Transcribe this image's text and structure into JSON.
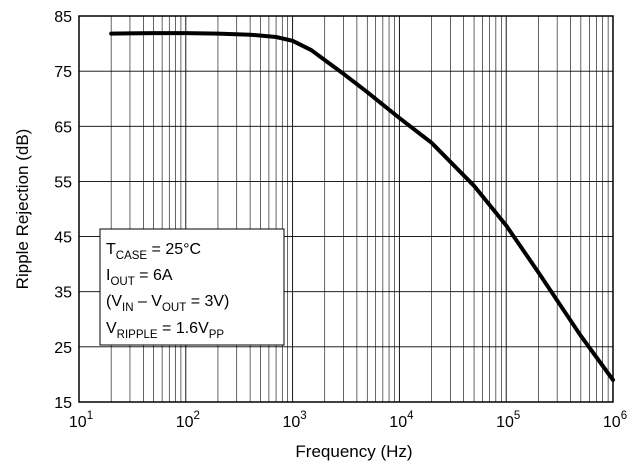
{
  "chart_data": {
    "type": "line",
    "xlabel": "Frequency (Hz)",
    "ylabel": "Ripple Rejection (dB)",
    "x_scale": "log",
    "xlim": [
      10,
      1000000
    ],
    "ylim": [
      15,
      85
    ],
    "grid": true,
    "x_tick_labels": [
      {
        "base": "10",
        "exp": "1"
      },
      {
        "base": "10",
        "exp": "2"
      },
      {
        "base": "10",
        "exp": "3"
      },
      {
        "base": "10",
        "exp": "4"
      },
      {
        "base": "10",
        "exp": "5"
      },
      {
        "base": "10",
        "exp": "6"
      }
    ],
    "y_ticks": [
      "15",
      "25",
      "35",
      "45",
      "55",
      "65",
      "75",
      "85"
    ],
    "series": [
      {
        "color": "#000000",
        "x": [
          20,
          50,
          100,
          200,
          400,
          700,
          1000,
          1500,
          2000,
          3000,
          5000,
          10000,
          20000,
          50000,
          100000,
          200000,
          500000,
          1000000
        ],
        "y": [
          81.8,
          81.9,
          81.9,
          81.8,
          81.6,
          81.2,
          80.5,
          78.8,
          77.0,
          74.5,
          71.2,
          66.5,
          62.0,
          54.2,
          47.0,
          38.5,
          27.0,
          19.0
        ]
      }
    ],
    "annotation": {
      "lines": [
        [
          {
            "t": "T"
          },
          {
            "t": "CASE",
            "sub": true
          },
          {
            "t": " = 25°C"
          }
        ],
        [
          {
            "t": "I"
          },
          {
            "t": "OUT",
            "sub": true
          },
          {
            "t": " = 6A"
          }
        ],
        [
          {
            "t": "(V"
          },
          {
            "t": "IN",
            "sub": true
          },
          {
            "t": " – V"
          },
          {
            "t": "OUT",
            "sub": true
          },
          {
            "t": " = 3V)"
          }
        ],
        [
          {
            "t": "V"
          },
          {
            "t": "RIPPLE",
            "sub": true
          },
          {
            "t": " = 1.6V"
          },
          {
            "t": "PP",
            "sub": true
          }
        ]
      ]
    }
  }
}
